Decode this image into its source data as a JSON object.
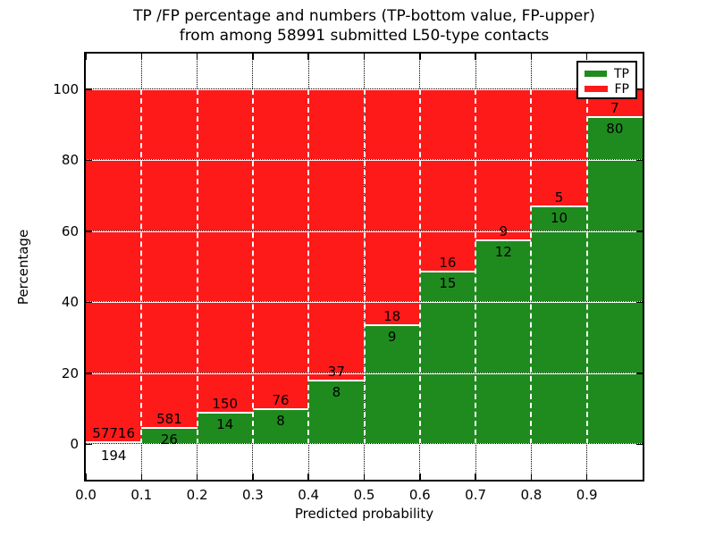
{
  "chart_data": {
    "type": "bar",
    "stacked": true,
    "normalized_to_percent": true,
    "title_line1": "TP /FP percentage and numbers (TP-bottom value, FP-upper)",
    "title_line2": "from among 58991 submitted L50-type contacts",
    "xlabel": "Predicted probability",
    "ylabel": "Percentage",
    "x_ticks": [
      "0.0",
      "0.1",
      "0.2",
      "0.3",
      "0.4",
      "0.5",
      "0.6",
      "0.7",
      "0.8",
      "0.9"
    ],
    "y_ticks": [
      0,
      20,
      40,
      60,
      80,
      100
    ],
    "xlim": [
      0.0,
      1.0
    ],
    "ylim": [
      -10,
      110
    ],
    "grid": true,
    "colors": {
      "tp": "#1f8b1f",
      "fp": "#ff1a1a"
    },
    "legend": {
      "position": "upper right",
      "items": [
        {
          "label": "TP",
          "color": "#1f8b1f"
        },
        {
          "label": "FP",
          "color": "#ff1a1a"
        }
      ]
    },
    "bins": [
      {
        "x0": 0.0,
        "x1": 0.1,
        "tp": 194,
        "fp": 57716
      },
      {
        "x0": 0.1,
        "x1": 0.2,
        "tp": 26,
        "fp": 581
      },
      {
        "x0": 0.2,
        "x1": 0.3,
        "tp": 14,
        "fp": 150
      },
      {
        "x0": 0.3,
        "x1": 0.4,
        "tp": 8,
        "fp": 76
      },
      {
        "x0": 0.4,
        "x1": 0.5,
        "tp": 8,
        "fp": 37
      },
      {
        "x0": 0.5,
        "x1": 0.6,
        "tp": 9,
        "fp": 18
      },
      {
        "x0": 0.6,
        "x1": 0.7,
        "tp": 15,
        "fp": 16
      },
      {
        "x0": 0.7,
        "x1": 0.8,
        "tp": 12,
        "fp": 9
      },
      {
        "x0": 0.8,
        "x1": 0.9,
        "tp": 10,
        "fp": 5
      },
      {
        "x0": 0.9,
        "x1": 1.0,
        "tp": 80,
        "fp": 7
      }
    ]
  }
}
